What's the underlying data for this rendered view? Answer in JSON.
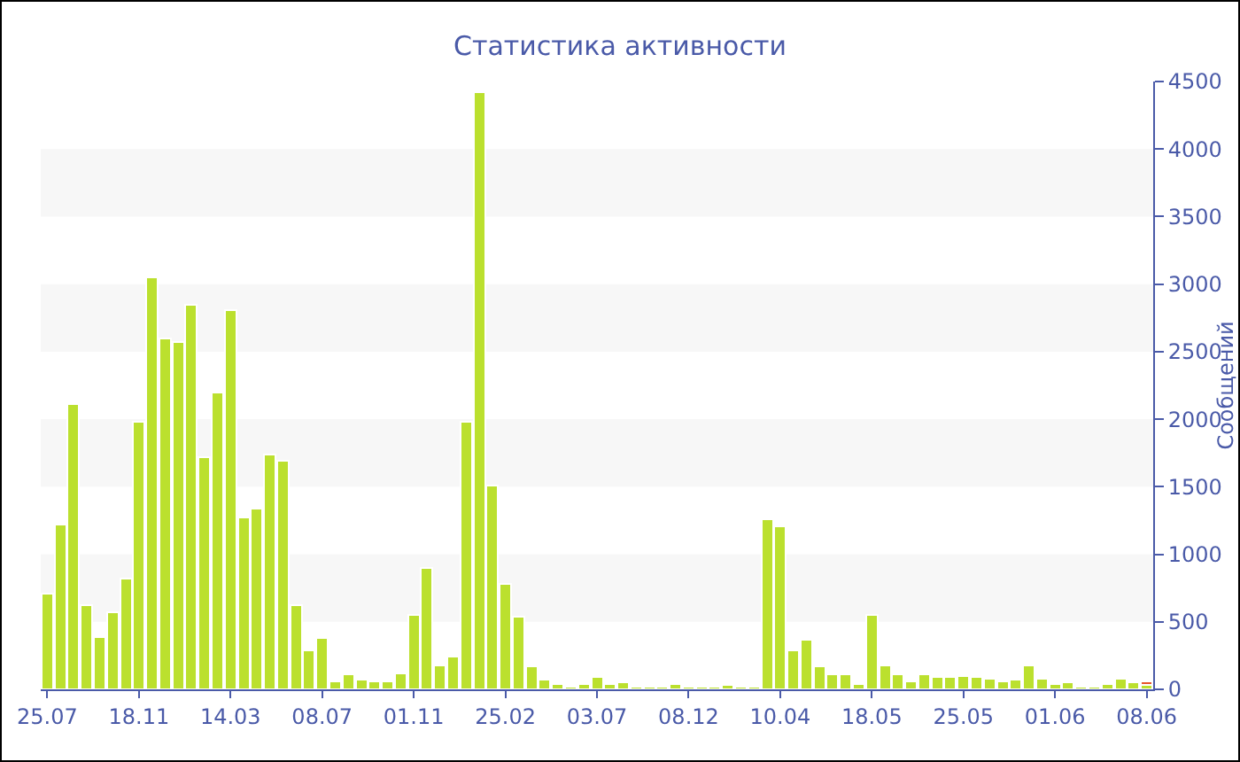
{
  "chart_data": {
    "type": "bar",
    "title": "Статистика активности",
    "ylabel": "Сообщений",
    "categories": [
      "25.07",
      null,
      null,
      null,
      null,
      null,
      null,
      "18.11",
      null,
      null,
      null,
      null,
      null,
      null,
      "14.03",
      null,
      null,
      null,
      null,
      null,
      null,
      "08.07",
      null,
      null,
      null,
      null,
      null,
      null,
      "01.11",
      null,
      null,
      null,
      null,
      null,
      null,
      "25.02",
      null,
      null,
      null,
      null,
      null,
      null,
      "03.07",
      null,
      null,
      null,
      null,
      null,
      null,
      "08.12",
      null,
      null,
      null,
      null,
      null,
      null,
      "10.04",
      null,
      null,
      null,
      null,
      null,
      null,
      "18.05",
      null,
      null,
      null,
      null,
      null,
      null,
      "25.05",
      null,
      null,
      null,
      null,
      null,
      null,
      "01.06",
      null,
      null,
      null,
      null,
      null,
      null,
      "08.06"
    ],
    "series": [
      {
        "color": "#bbe02e",
        "values": [
          710,
          1220,
          2110,
          620,
          390,
          570,
          820,
          1980,
          3050,
          2600,
          2570,
          2850,
          1720,
          2200,
          2810,
          1270,
          1340,
          1740,
          1690,
          620,
          290,
          380,
          60,
          110,
          70,
          60,
          60,
          120,
          550,
          900,
          180,
          240,
          1980,
          4420,
          1510,
          780,
          540,
          170,
          70,
          40,
          20,
          40,
          90,
          40,
          50,
          20,
          20,
          20,
          40,
          20,
          20,
          20,
          30,
          20,
          20,
          1260,
          1210,
          290,
          370,
          170,
          110,
          110,
          40,
          550,
          180,
          110,
          60,
          110,
          90,
          90,
          100,
          90,
          80,
          60,
          70,
          180,
          80,
          40,
          50,
          20,
          20,
          40,
          80,
          50,
          30
        ]
      },
      {
        "color": "#e8562a",
        "values": [
          null,
          null,
          null,
          null,
          null,
          null,
          null,
          null,
          null,
          null,
          null,
          null,
          null,
          null,
          null,
          null,
          null,
          null,
          null,
          null,
          null,
          null,
          null,
          null,
          null,
          null,
          null,
          null,
          null,
          null,
          null,
          null,
          null,
          null,
          null,
          null,
          null,
          null,
          null,
          null,
          null,
          null,
          null,
          null,
          null,
          null,
          null,
          null,
          null,
          null,
          null,
          null,
          null,
          null,
          null,
          null,
          null,
          null,
          null,
          null,
          null,
          null,
          null,
          null,
          null,
          null,
          null,
          null,
          null,
          null,
          null,
          null,
          null,
          null,
          null,
          null,
          null,
          null,
          null,
          null,
          null,
          null,
          null,
          null,
          30
        ]
      }
    ],
    "stacked": true,
    "ylim": [
      0,
      4500
    ],
    "yticks": [
      0,
      500,
      1000,
      1500,
      2000,
      2500,
      3000,
      3500,
      4000,
      4500
    ],
    "bands": [
      {
        "axis": "y",
        "from": 500,
        "to": 1000,
        "color": "#f7f7f7"
      },
      {
        "axis": "y",
        "from": 1500,
        "to": 2000,
        "color": "#f7f7f7"
      },
      {
        "axis": "y",
        "from": 2500,
        "to": 3000,
        "color": "#f7f7f7"
      },
      {
        "axis": "y",
        "from": 3500,
        "to": 4000,
        "color": "#f7f7f7"
      }
    ]
  }
}
